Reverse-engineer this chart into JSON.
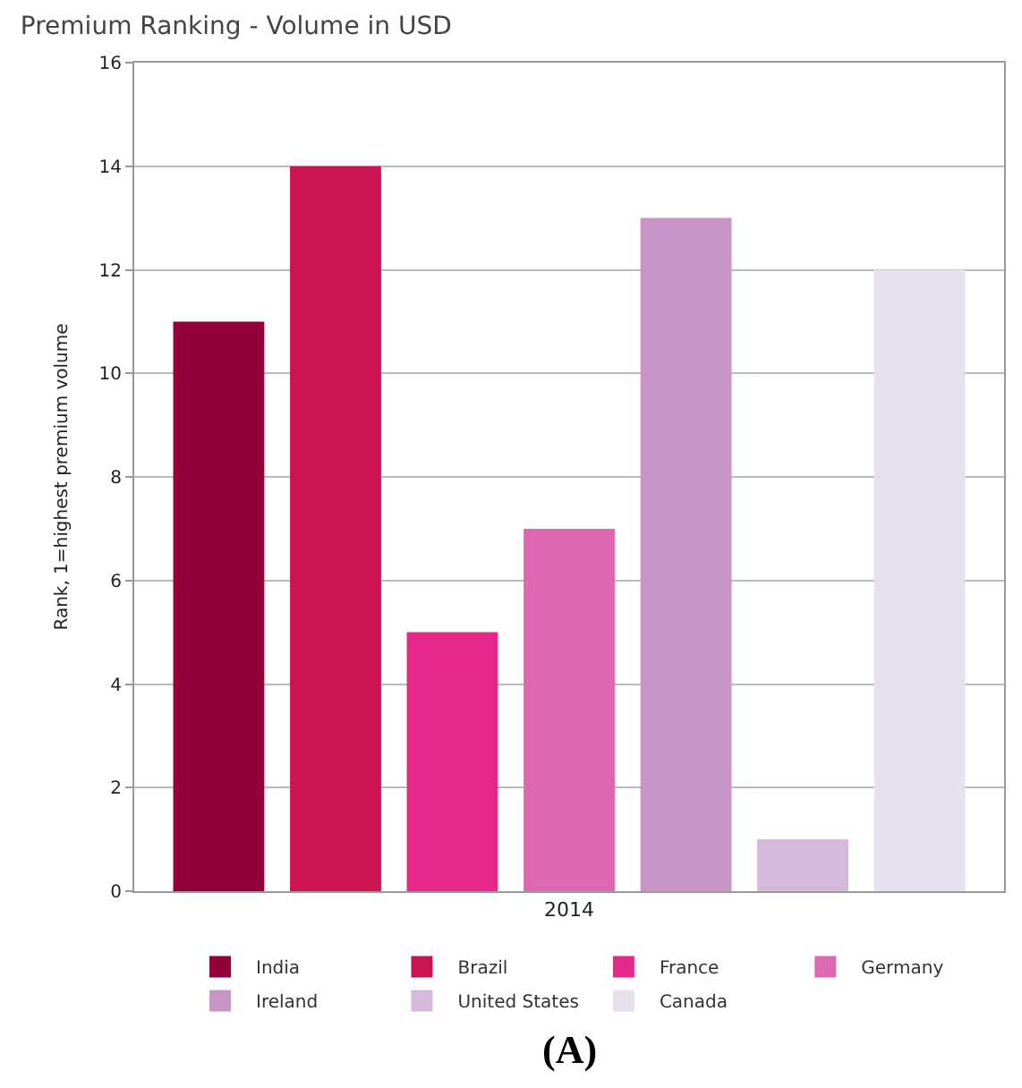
{
  "chart_data": {
    "type": "bar",
    "title": "Premium Ranking - Volume in USD",
    "ylabel": "Rank, 1=highest premium volume",
    "categories": [
      "2014"
    ],
    "series": [
      {
        "name": "India",
        "color": "#93003a",
        "values": [
          11
        ]
      },
      {
        "name": "Brazil",
        "color": "#cc1454",
        "values": [
          14
        ]
      },
      {
        "name": "France",
        "color": "#e6288a",
        "values": [
          5
        ]
      },
      {
        "name": "Germany",
        "color": "#df66b0",
        "values": [
          7
        ]
      },
      {
        "name": "Ireland",
        "color": "#c994c7",
        "values": [
          13
        ]
      },
      {
        "name": "United States",
        "color": "#d4b9da",
        "values": [
          1
        ]
      },
      {
        "name": "Canada",
        "color": "#e7e1ef",
        "values": [
          12
        ]
      }
    ],
    "ylim": [
      0,
      16
    ],
    "yticks": [
      0,
      2,
      4,
      6,
      8,
      10,
      12,
      14,
      16
    ],
    "grid": "y",
    "legend": "bottom",
    "annotations": [
      "(A)"
    ]
  }
}
